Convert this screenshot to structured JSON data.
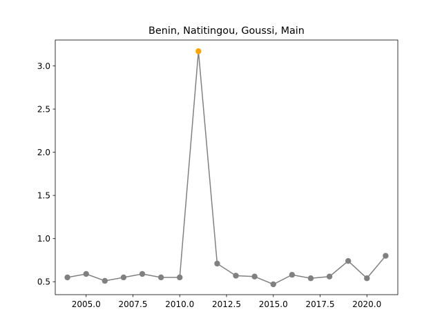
{
  "chart_data": {
    "type": "line",
    "title": "Benin, Natitingou, Goussi, Main",
    "xlabel": "",
    "ylabel": "",
    "xlim": [
      2003.35,
      2021.65
    ],
    "ylim": [
      0.35,
      3.3
    ],
    "grid": false,
    "legend": "none",
    "x_ticks": [
      {
        "value": 2005.0,
        "label": "2005.0"
      },
      {
        "value": 2007.5,
        "label": "2007.5"
      },
      {
        "value": 2010.0,
        "label": "2010.0"
      },
      {
        "value": 2012.5,
        "label": "2012.5"
      },
      {
        "value": 2015.0,
        "label": "2015.0"
      },
      {
        "value": 2017.5,
        "label": "2017.5"
      },
      {
        "value": 2020.0,
        "label": "2020.0"
      }
    ],
    "y_ticks": [
      {
        "value": 0.5,
        "label": "0.5"
      },
      {
        "value": 1.0,
        "label": "1.0"
      },
      {
        "value": 1.5,
        "label": "1.5"
      },
      {
        "value": 2.0,
        "label": "2.0"
      },
      {
        "value": 2.5,
        "label": "2.5"
      },
      {
        "value": 3.0,
        "label": "3.0"
      }
    ],
    "series": [
      {
        "x": [
          2004,
          2005,
          2006,
          2007,
          2008,
          2009,
          2010,
          2011,
          2012,
          2013,
          2014,
          2015,
          2016,
          2017,
          2018,
          2019,
          2020,
          2021
        ],
        "values": [
          0.55,
          0.59,
          0.51,
          0.55,
          0.59,
          0.55,
          0.55,
          3.17,
          0.71,
          0.57,
          0.56,
          0.47,
          0.58,
          0.54,
          0.56,
          0.74,
          0.54,
          0.8
        ]
      }
    ],
    "highlight": {
      "x": 2011,
      "value": 3.17
    },
    "colors": {
      "line": "#808080",
      "marker": "#808080",
      "highlight": "#ffa500",
      "axes": "#000000"
    }
  }
}
